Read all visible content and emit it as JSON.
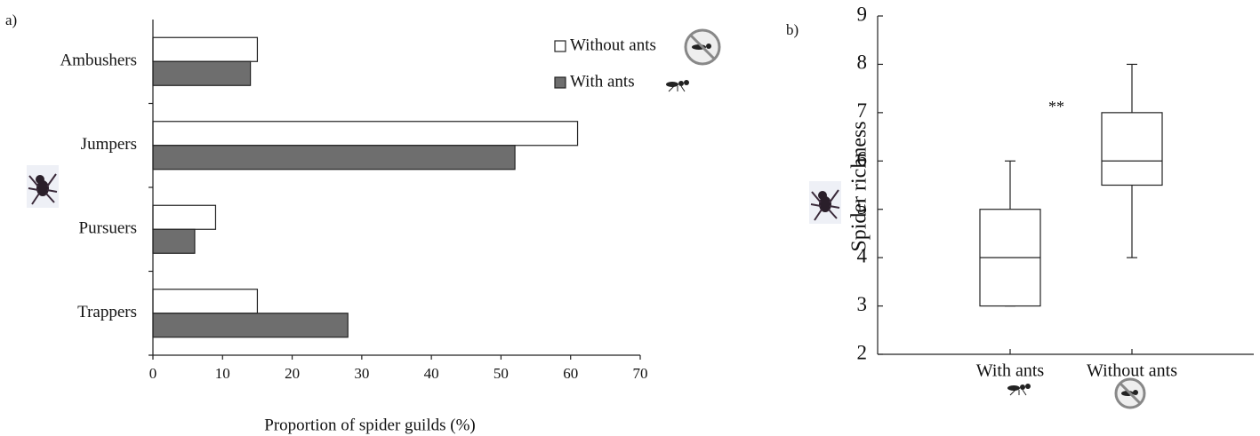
{
  "chart_data": [
    {
      "type": "bar",
      "orientation": "horizontal",
      "label": "a)",
      "categories": [
        "Ambushers",
        "Jumpers",
        "Pursuers",
        "Trappers"
      ],
      "series": [
        {
          "name": "Without ants",
          "color": "#ffffff",
          "values": [
            15,
            61,
            9,
            15
          ]
        },
        {
          "name": "With ants",
          "color": "#6e6e6e",
          "values": [
            14,
            52,
            6,
            28
          ]
        }
      ],
      "xlabel": "Proportion of spider guilds (%)",
      "xlim": [
        0,
        70
      ],
      "xticks": [
        0,
        10,
        20,
        30,
        40,
        50,
        60,
        70
      ],
      "legend": "upper right"
    },
    {
      "type": "box",
      "label": "b)",
      "categories": [
        "With ants",
        "Without ants"
      ],
      "boxes": [
        {
          "min": 3,
          "q1": 3,
          "median": 4,
          "q3": 5,
          "max": 6
        },
        {
          "min": 4,
          "q1": 5.5,
          "median": 6,
          "q3": 7,
          "max": 8
        }
      ],
      "ylabel": "Spider richness",
      "annotation": "**",
      "ylim": [
        2,
        9
      ],
      "yticks": [
        2,
        3,
        4,
        5,
        6,
        7,
        8,
        9
      ]
    }
  ]
}
